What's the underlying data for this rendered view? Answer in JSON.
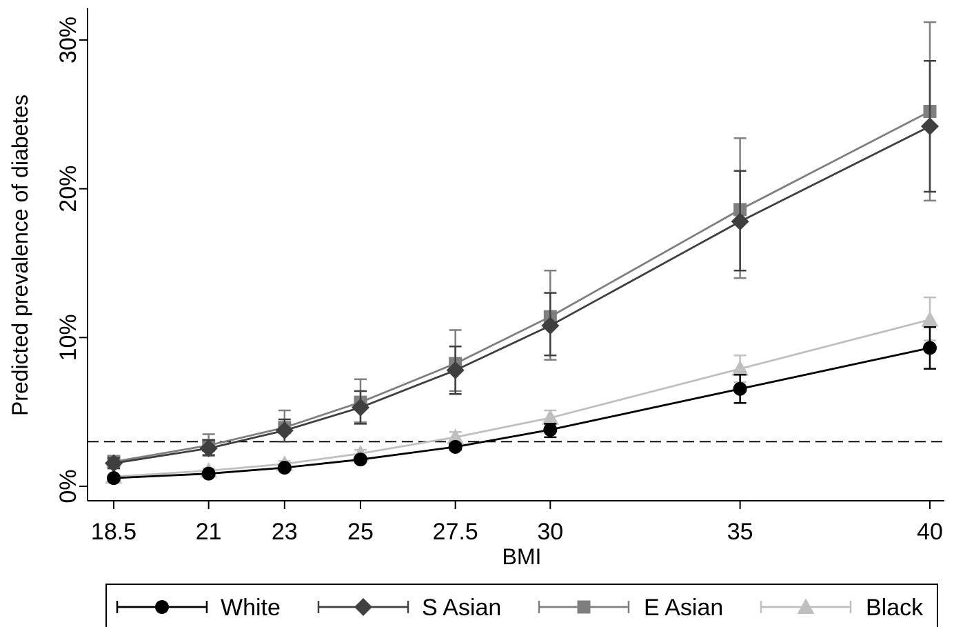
{
  "chart_data": {
    "type": "line",
    "title": "",
    "xlabel": "BMI",
    "ylabel": "Predicted prevalence of diabetes",
    "x_ticks": [
      "18.5",
      "21",
      "23",
      "25",
      "27.5",
      "30",
      "35",
      "40"
    ],
    "x_values": [
      18.5,
      21,
      23,
      25,
      27.5,
      30,
      35,
      40
    ],
    "y_ticks": [
      0,
      10,
      20,
      30
    ],
    "y_tick_labels": [
      "0%",
      "10%",
      "20%",
      "30%"
    ],
    "xlim": [
      18.5,
      40
    ],
    "ylim": [
      -1,
      32
    ],
    "reference_line": {
      "y": 3.0,
      "style": "dashed"
    },
    "grid": false,
    "legend_position": "bottom",
    "series": [
      {
        "name": "White",
        "marker": "circle",
        "color": "#000000",
        "values": [
          0.55,
          0.85,
          1.25,
          1.8,
          2.65,
          3.8,
          6.55,
          9.3
        ],
        "ci_low": [
          0.45,
          0.75,
          1.1,
          1.65,
          2.45,
          3.3,
          5.6,
          7.9
        ],
        "ci_high": [
          0.65,
          0.95,
          1.4,
          1.95,
          2.85,
          4.2,
          7.5,
          10.7
        ]
      },
      {
        "name": "S Asian",
        "marker": "diamond",
        "color": "#3f3f3f",
        "values": [
          1.55,
          2.55,
          3.75,
          5.3,
          7.8,
          10.8,
          17.8,
          24.2
        ],
        "ci_low": [
          1.2,
          2.1,
          3.0,
          4.2,
          6.2,
          8.8,
          14.5,
          19.8
        ],
        "ci_high": [
          1.9,
          3.1,
          4.5,
          6.4,
          9.4,
          13.0,
          21.2,
          28.6
        ]
      },
      {
        "name": "E Asian",
        "marker": "square",
        "color": "#7f7f7f",
        "values": [
          1.65,
          2.75,
          3.95,
          5.65,
          8.25,
          11.4,
          18.6,
          25.2
        ],
        "ci_low": [
          1.25,
          2.05,
          3.0,
          4.3,
          6.4,
          8.5,
          14.0,
          19.2
        ],
        "ci_high": [
          2.05,
          3.5,
          5.1,
          7.2,
          10.5,
          14.5,
          23.4,
          31.2
        ]
      },
      {
        "name": "Black",
        "marker": "triangle",
        "color": "#bfbfbf",
        "values": [
          0.65,
          1.05,
          1.5,
          2.2,
          3.3,
          4.6,
          7.9,
          11.2
        ],
        "ci_low": [
          0.55,
          0.9,
          1.3,
          1.95,
          2.95,
          4.15,
          7.0,
          9.8
        ],
        "ci_high": [
          0.75,
          1.2,
          1.7,
          2.45,
          3.65,
          5.1,
          8.8,
          12.7
        ]
      }
    ]
  }
}
